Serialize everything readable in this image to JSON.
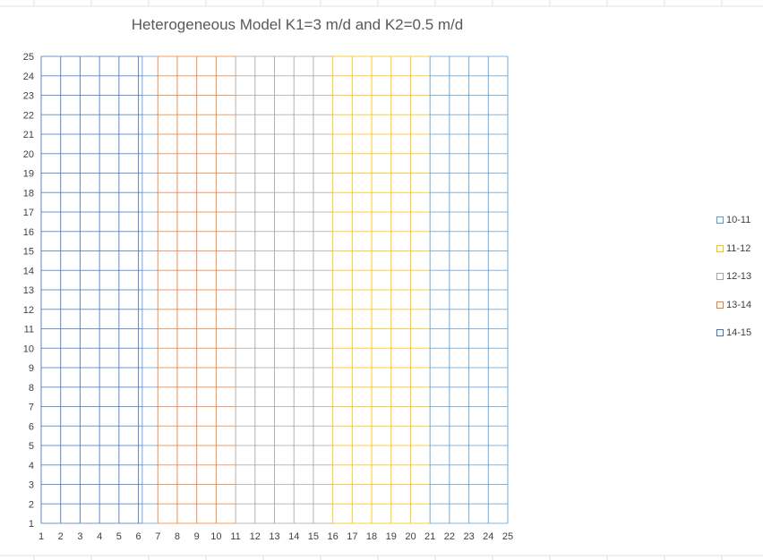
{
  "chart_data": {
    "type": "heatmap",
    "title": "Heterogeneous Model K1=3 m/d and K2=0.5 m/d",
    "xlabel": "",
    "ylabel": "",
    "xlim": [
      1,
      25
    ],
    "ylim": [
      1,
      25
    ],
    "x_ticks": [
      1,
      2,
      3,
      4,
      5,
      6,
      7,
      8,
      9,
      10,
      11,
      12,
      13,
      14,
      15,
      16,
      17,
      18,
      19,
      20,
      21,
      22,
      23,
      24,
      25
    ],
    "y_ticks": [
      1,
      2,
      3,
      4,
      5,
      6,
      7,
      8,
      9,
      10,
      11,
      12,
      13,
      14,
      15,
      16,
      17,
      18,
      19,
      20,
      21,
      22,
      23,
      24,
      25
    ],
    "grid": true,
    "legend_position": "right",
    "series": [
      {
        "name": "10-11",
        "color": "#5b9bd5"
      },
      {
        "name": "11-12",
        "color": "#ffc000"
      },
      {
        "name": "12-13",
        "color": "#a5a5a5"
      },
      {
        "name": "13-14",
        "color": "#ed7d31"
      },
      {
        "name": "14-15",
        "color": "#4472c4"
      }
    ],
    "column_bands": [
      {
        "x_from": 1,
        "x_to": 6.2,
        "series": "14-15"
      },
      {
        "x_from": 6.2,
        "x_to": 7,
        "series": "10-11"
      },
      {
        "x_from": 7,
        "x_to": 11,
        "series": "13-14"
      },
      {
        "x_from": 11,
        "x_to": 16,
        "series": "12-13"
      },
      {
        "x_from": 16,
        "x_to": 21,
        "series": "11-12"
      },
      {
        "x_from": 21,
        "x_to": 25,
        "series": "10-11"
      }
    ]
  }
}
